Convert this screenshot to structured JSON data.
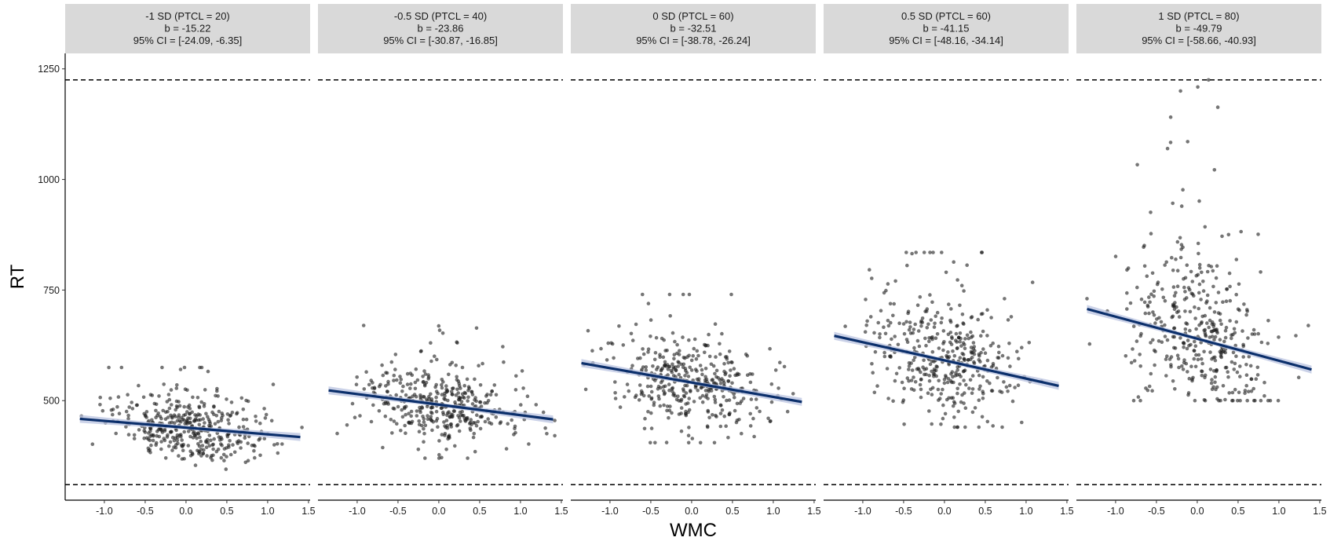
{
  "chart_data": {
    "type": "scatter",
    "xlabel": "WMC",
    "ylabel": "RT",
    "xlim": [
      -1.48,
      1.52
    ],
    "ylim": [
      275,
      1285
    ],
    "x_ticks": [
      -1.0,
      -0.5,
      0.0,
      0.5,
      1.0,
      1.5
    ],
    "x_tick_labels": [
      "-1.0",
      "-0.5",
      "0.0",
      "0.5",
      "1.0",
      "1.5"
    ],
    "y_ticks": [
      500,
      750,
      1000,
      1250
    ],
    "y_tick_labels": [
      "500",
      "750",
      "1000",
      "1250"
    ],
    "reference_lines": [
      1225,
      310
    ],
    "grid": false,
    "legend": "none",
    "colors": {
      "point": "#1a1a1a",
      "fit_line": "#0b2f6b",
      "ribbon": "#b9c3e0",
      "strip_fill": "#d9d9d9",
      "ref_line": "#000000"
    },
    "panels": [
      {
        "strip": [
          "-1 SD (PTCL = 20)",
          "b = -15.22",
          "95% CI = [-24.09, -6.35]"
        ],
        "slope": -15.22,
        "intercept": 439,
        "fit_x": [
          -1.3,
          1.4
        ],
        "points": {
          "n": 400,
          "seed": 11,
          "x_mean": 0.0,
          "x_sd": 0.45,
          "x_min": -1.35,
          "x_max": 1.42,
          "resid_sd": 38,
          "tail": 0.08,
          "y_min": 315,
          "y_max": 575
        }
      },
      {
        "strip": [
          "-0.5 SD (PTCL = 40)",
          "b = -23.86",
          "95% CI = [-30.87, -16.85]"
        ],
        "slope": -23.86,
        "intercept": 491,
        "fit_x": [
          -1.35,
          1.4
        ],
        "points": {
          "n": 400,
          "seed": 23,
          "x_mean": 0.0,
          "x_sd": 0.45,
          "x_min": -1.35,
          "x_max": 1.42,
          "resid_sd": 42,
          "tail": 0.08,
          "y_min": 370,
          "y_max": 670
        }
      },
      {
        "strip": [
          "0 SD (PTCL = 60)",
          "b = -32.51",
          "95% CI = [-38.78, -26.24]"
        ],
        "slope": -32.51,
        "intercept": 541,
        "fit_x": [
          -1.35,
          1.35
        ],
        "points": {
          "n": 400,
          "seed": 37,
          "x_mean": 0.0,
          "x_sd": 0.45,
          "x_min": -1.35,
          "x_max": 1.42,
          "resid_sd": 52,
          "tail": 0.1,
          "y_min": 405,
          "y_max": 740
        }
      },
      {
        "strip": [
          "0.5 SD (PTCL = 60)",
          "b = -41.15",
          "95% CI = [-48.16, -34.14]"
        ],
        "slope": -41.15,
        "intercept": 591,
        "fit_x": [
          -1.35,
          1.4
        ],
        "points": {
          "n": 400,
          "seed": 53,
          "x_mean": 0.0,
          "x_sd": 0.45,
          "x_min": -1.35,
          "x_max": 1.42,
          "resid_sd": 62,
          "tail": 0.12,
          "y_min": 440,
          "y_max": 835
        }
      },
      {
        "strip": [
          "1 SD (PTCL = 80)",
          "b = -49.79",
          "95% CI = [-58.66, -40.93]"
        ],
        "slope": -49.79,
        "intercept": 640,
        "fit_x": [
          -1.35,
          1.4
        ],
        "points": {
          "n": 400,
          "seed": 71,
          "x_mean": 0.0,
          "x_sd": 0.45,
          "x_min": -1.35,
          "x_max": 1.45,
          "resid_sd": 85,
          "tail": 0.2,
          "y_min": 500,
          "y_max": 1225
        }
      }
    ]
  }
}
